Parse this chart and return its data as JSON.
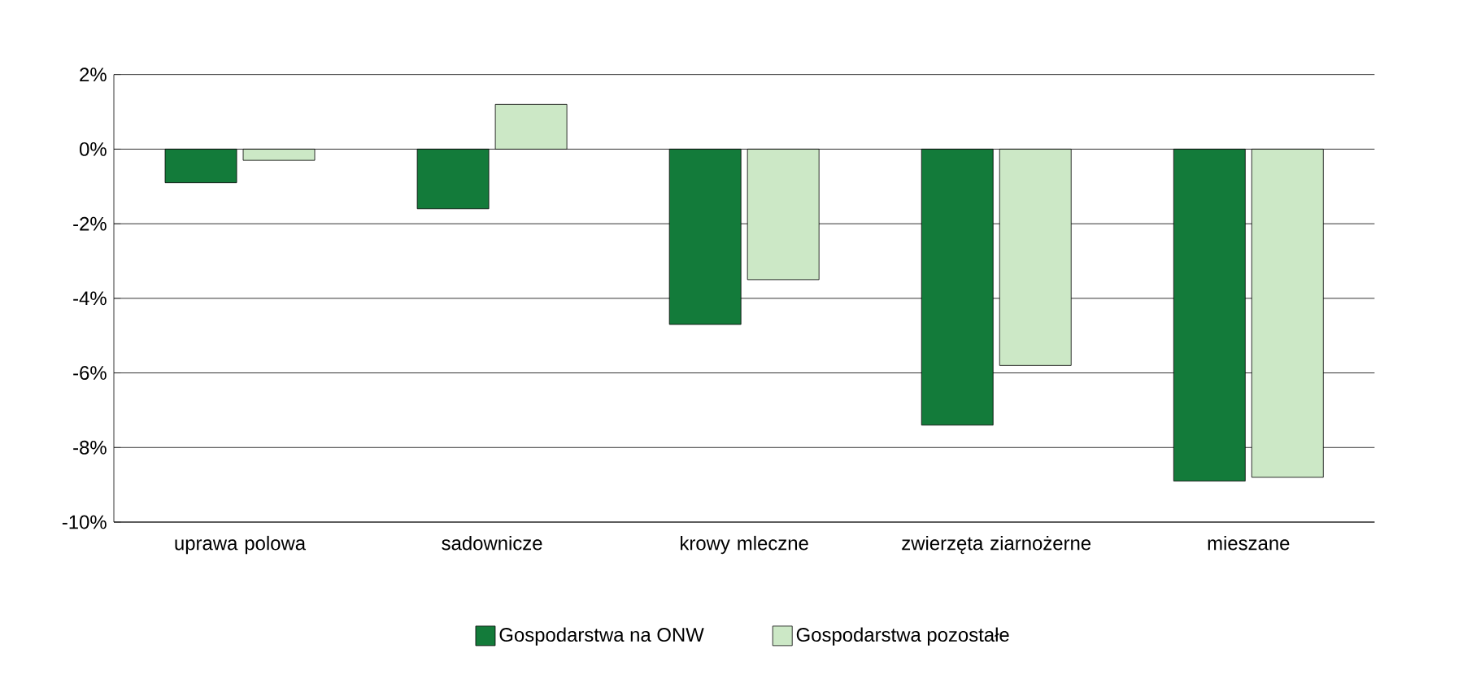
{
  "chart_data": {
    "type": "bar",
    "categories": [
      "uprawa polowa",
      "sadownicze",
      "krowy mleczne",
      "zwierzęta ziarnożerne",
      "mieszane"
    ],
    "series": [
      {
        "name": "Gospodarstwa na ONW",
        "color": "#137b3a",
        "values": [
          -0.9,
          -1.6,
          -4.7,
          -7.4,
          -8.9
        ]
      },
      {
        "name": "Gospodarstwa pozostałe",
        "color": "#cce8c6",
        "values": [
          -0.3,
          1.2,
          -3.5,
          -5.8,
          -8.8
        ]
      }
    ],
    "ylim": [
      -10,
      2
    ],
    "yticks": [
      {
        "value": -10,
        "label": "-10%"
      },
      {
        "value": -8,
        "label": "-8%"
      },
      {
        "value": -6,
        "label": "-6%"
      },
      {
        "value": -4,
        "label": "-4%"
      },
      {
        "value": -2,
        "label": "-2%"
      },
      {
        "value": 0,
        "label": "0%"
      },
      {
        "value": 2,
        "label": "2%"
      }
    ],
    "grid": "y",
    "legend": "bottom"
  }
}
